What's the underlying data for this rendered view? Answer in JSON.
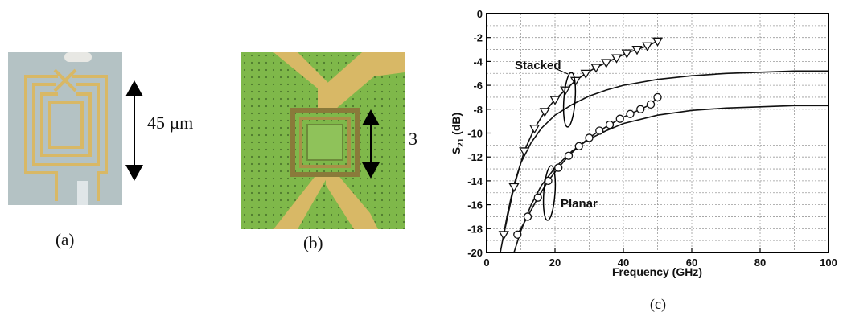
{
  "panels": {
    "a": {
      "label": "(a)",
      "dimension_label": "45 µm"
    },
    "b": {
      "label": "(b)",
      "dimension_label": "3"
    },
    "c": {
      "label": "(c)"
    }
  },
  "colors": {
    "photo_a_bg": "#b4c2c4",
    "photo_b_bg": "#7fb84a",
    "gold_trace": "#d8b866"
  },
  "chart_data": {
    "type": "line",
    "xlabel": "Frequency (GHz)",
    "ylabel": "S21 (dB)",
    "ylabel_main": "S",
    "ylabel_sub": "21",
    "ylabel_unit": " (dB)",
    "xlim": [
      0,
      100
    ],
    "ylim": [
      -20,
      0
    ],
    "x_ticks": [
      "0",
      "20",
      "40",
      "60",
      "80",
      "100"
    ],
    "y_ticks": [
      "0",
      "-2",
      "-4",
      "-6",
      "-8",
      "-10",
      "-12",
      "-14",
      "-16",
      "-18",
      "-20"
    ],
    "grid": true,
    "series": [
      {
        "name": "Stacked",
        "marker": "triangle-down",
        "x": [
          5,
          8,
          11,
          14,
          17,
          20,
          23,
          26,
          29,
          32,
          35,
          38,
          41,
          44,
          47,
          50
        ],
        "y": [
          -18.5,
          -14.5,
          -11.5,
          -9.6,
          -8.2,
          -7.2,
          -6.4,
          -5.6,
          -5.0,
          -4.5,
          -4.1,
          -3.7,
          -3.3,
          -3.0,
          -2.7,
          -2.3
        ]
      },
      {
        "name": "Planar",
        "marker": "circle",
        "x": [
          9,
          12,
          15,
          18,
          21,
          24,
          27,
          30,
          33,
          36,
          39,
          42,
          45,
          48,
          50
        ],
        "y": [
          -18.5,
          -17.0,
          -15.4,
          -14.0,
          -12.9,
          -11.9,
          -11.1,
          -10.4,
          -9.8,
          -9.3,
          -8.8,
          -8.4,
          -8.0,
          -7.6,
          -7.0
        ]
      }
    ],
    "model_curves": [
      {
        "x": [
          4,
          6,
          8,
          10,
          13,
          16,
          20,
          25,
          30,
          35,
          40,
          50,
          60,
          70,
          80,
          90,
          100
        ],
        "y": [
          -20,
          -16.9,
          -14.3,
          -12.5,
          -10.8,
          -9.6,
          -8.5,
          -7.6,
          -6.9,
          -6.4,
          -6.0,
          -5.5,
          -5.2,
          -5.0,
          -4.9,
          -4.8,
          -4.8
        ]
      },
      {
        "x": [
          8,
          10,
          13,
          16,
          20,
          25,
          30,
          35,
          40,
          50,
          60,
          70,
          80,
          90,
          100
        ],
        "y": [
          -20,
          -18.2,
          -16.0,
          -14.4,
          -12.9,
          -11.5,
          -10.5,
          -9.8,
          -9.2,
          -8.5,
          -8.1,
          -7.9,
          -7.8,
          -7.7,
          -7.7
        ]
      }
    ]
  }
}
